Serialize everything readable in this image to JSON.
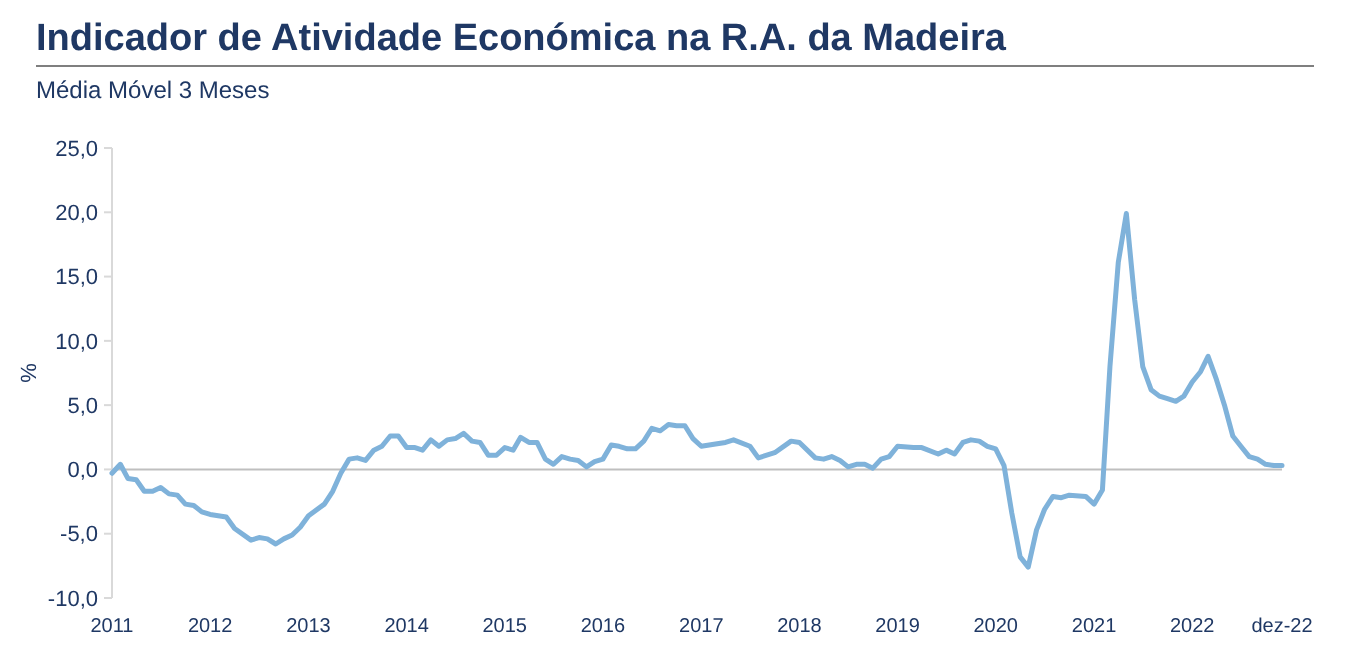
{
  "chart_data": {
    "type": "line",
    "title": "Indicador de Atividade Económica na R.A. da Madeira",
    "subtitle": "Média Móvel 3 Meses",
    "ylabel": "%",
    "x": [
      "2011-01",
      "2011-02",
      "2011-03",
      "2011-04",
      "2011-05",
      "2011-06",
      "2011-07",
      "2011-08",
      "2011-09",
      "2011-10",
      "2011-11",
      "2011-12",
      "2012-01",
      "2012-03",
      "2012-04",
      "2012-06",
      "2012-07",
      "2012-08",
      "2012-09",
      "2012-10",
      "2012-11",
      "2012-12",
      "2013-01",
      "2013-03",
      "2013-04",
      "2013-05",
      "2013-06",
      "2013-07",
      "2013-08",
      "2013-09",
      "2013-10",
      "2013-11",
      "2013-12",
      "2014-01",
      "2014-02",
      "2014-03",
      "2014-04",
      "2014-05",
      "2014-06",
      "2014-07",
      "2014-08",
      "2014-09",
      "2014-10",
      "2014-11",
      "2014-12",
      "2015-01",
      "2015-02",
      "2015-03",
      "2015-04",
      "2015-05",
      "2015-06",
      "2015-07",
      "2015-08",
      "2015-09",
      "2015-10",
      "2015-11",
      "2015-12",
      "2016-01",
      "2016-02",
      "2016-03",
      "2016-04",
      "2016-05",
      "2016-06",
      "2016-07",
      "2016-08",
      "2016-09",
      "2016-10",
      "2016-11",
      "2016-12",
      "2017-01",
      "2017-03",
      "2017-04",
      "2017-05",
      "2017-07",
      "2017-08",
      "2017-10",
      "2017-12",
      "2018-01",
      "2018-03",
      "2018-04",
      "2018-05",
      "2018-06",
      "2018-07",
      "2018-08",
      "2018-09",
      "2018-10",
      "2018-11",
      "2018-12",
      "2019-01",
      "2019-03",
      "2019-04",
      "2019-06",
      "2019-07",
      "2019-08",
      "2019-09",
      "2019-10",
      "2019-11",
      "2019-12",
      "2020-01",
      "2020-02",
      "2020-03",
      "2020-04",
      "2020-05",
      "2020-06",
      "2020-07",
      "2020-08",
      "2020-09",
      "2020-10",
      "2020-12",
      "2021-01",
      "2021-02",
      "2021-03",
      "2021-04",
      "2021-05",
      "2021-06",
      "2021-07",
      "2021-08",
      "2021-09",
      "2021-10",
      "2021-11",
      "2021-12",
      "2022-01",
      "2022-02",
      "2022-03",
      "2022-04",
      "2022-05",
      "2022-06",
      "2022-07",
      "2022-08",
      "2022-09",
      "2022-10",
      "2022-11",
      "2022-12"
    ],
    "series": [
      {
        "color": "#7fb2da",
        "values": [
          -0.3,
          0.4,
          -0.7,
          -0.8,
          -1.7,
          -1.7,
          -1.4,
          -1.9,
          -2.0,
          -2.7,
          -2.8,
          -3.3,
          -3.5,
          -3.7,
          -4.6,
          -5.5,
          -5.3,
          -5.4,
          -5.8,
          -5.4,
          -5.1,
          -4.5,
          -3.6,
          -2.7,
          -1.7,
          -0.3,
          0.8,
          0.9,
          0.7,
          1.5,
          1.8,
          2.6,
          2.6,
          1.7,
          1.7,
          1.5,
          2.3,
          1.8,
          2.3,
          2.4,
          2.8,
          2.2,
          2.1,
          1.1,
          1.1,
          1.7,
          1.5,
          2.5,
          2.1,
          2.1,
          0.8,
          0.4,
          1.0,
          0.8,
          0.7,
          0.2,
          0.6,
          0.8,
          1.9,
          1.8,
          1.6,
          1.6,
          2.2,
          3.2,
          3.0,
          3.5,
          3.4,
          3.4,
          2.4,
          1.8,
          2.0,
          2.1,
          2.3,
          1.8,
          0.9,
          1.3,
          2.2,
          2.1,
          0.9,
          0.8,
          1.0,
          0.7,
          0.2,
          0.4,
          0.4,
          0.1,
          0.8,
          1.0,
          1.8,
          1.7,
          1.7,
          1.2,
          1.5,
          1.2,
          2.1,
          2.3,
          2.2,
          1.8,
          1.6,
          0.3,
          -3.4,
          -6.8,
          -7.6,
          -4.7,
          -3.1,
          -2.1,
          -2.2,
          -2.0,
          -2.1,
          -2.7,
          -1.6,
          8.0,
          16.1,
          19.9,
          13.2,
          8.0,
          6.2,
          5.7,
          5.5,
          5.3,
          5.7,
          6.8,
          7.6,
          8.8,
          7.0,
          5.0,
          2.6,
          1.8,
          1.0,
          0.8,
          0.4,
          0.3,
          0.3
        ]
      }
    ],
    "xlim": [
      "2011-01",
      "2022-12"
    ],
    "xticks": [
      {
        "value": "2011-01",
        "label": "2011"
      },
      {
        "value": "2012-01",
        "label": "2012"
      },
      {
        "value": "2013-01",
        "label": "2013"
      },
      {
        "value": "2014-01",
        "label": "2014"
      },
      {
        "value": "2015-01",
        "label": "2015"
      },
      {
        "value": "2016-01",
        "label": "2016"
      },
      {
        "value": "2017-01",
        "label": "2017"
      },
      {
        "value": "2018-01",
        "label": "2018"
      },
      {
        "value": "2019-01",
        "label": "2019"
      },
      {
        "value": "2020-01",
        "label": "2020"
      },
      {
        "value": "2021-01",
        "label": "2021"
      },
      {
        "value": "2022-01",
        "label": "2022"
      },
      {
        "value": "2022-12",
        "label": "dez-22"
      }
    ],
    "ylim": [
      -10,
      25
    ],
    "yticks": [
      {
        "value": -10,
        "label": "-10,0"
      },
      {
        "value": -5,
        "label": "-5,0"
      },
      {
        "value": 0,
        "label": "0,0"
      },
      {
        "value": 5,
        "label": "5,0"
      },
      {
        "value": 10,
        "label": "10,0"
      },
      {
        "value": 15,
        "label": "15,0"
      },
      {
        "value": 20,
        "label": "20,0"
      },
      {
        "value": 25,
        "label": "25,0"
      }
    ],
    "ref_lines": [
      {
        "axis": "y",
        "value": 0,
        "color": "#bfbfbf"
      }
    ],
    "marker": "none",
    "line_style": "solid"
  }
}
